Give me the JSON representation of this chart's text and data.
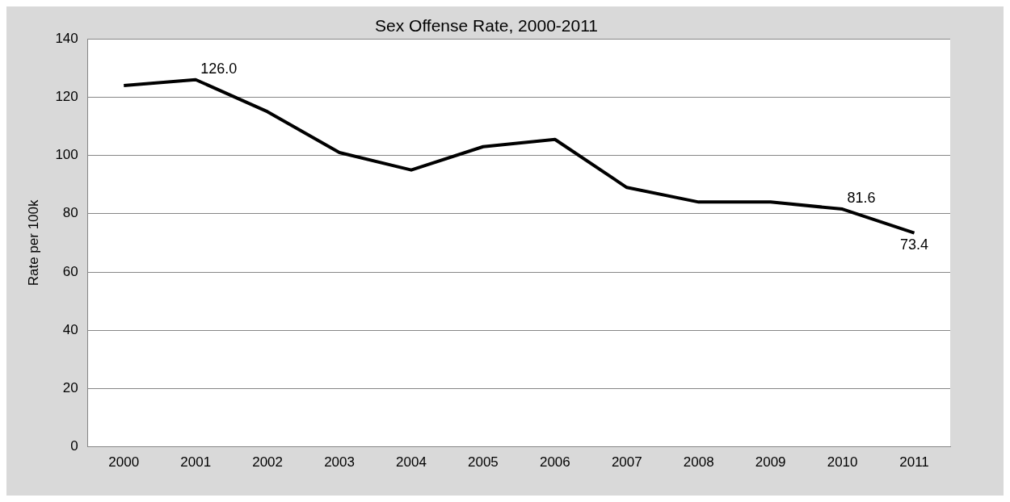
{
  "chart_data": {
    "type": "line",
    "title": "Sex Offense Rate, 2000-2011",
    "ylabel": "Rate per 100k",
    "categories": [
      "2000",
      "2001",
      "2002",
      "2003",
      "2004",
      "2005",
      "2006",
      "2007",
      "2008",
      "2009",
      "2010",
      "2011"
    ],
    "series": [
      {
        "color": "#000000",
        "values": [
          124,
          126.0,
          115,
          101,
          95,
          103,
          105.5,
          89,
          84,
          84,
          81.6,
          73.4
        ],
        "value_labels": [
          null,
          "126.0",
          null,
          null,
          null,
          null,
          null,
          null,
          null,
          null,
          "81.6",
          "73.4"
        ]
      }
    ],
    "ylim": [
      0,
      140
    ],
    "yticks": [
      0,
      20,
      40,
      60,
      80,
      100,
      120,
      140
    ],
    "grid": "y",
    "legend": false,
    "marker": "none",
    "line_style": "solid"
  }
}
